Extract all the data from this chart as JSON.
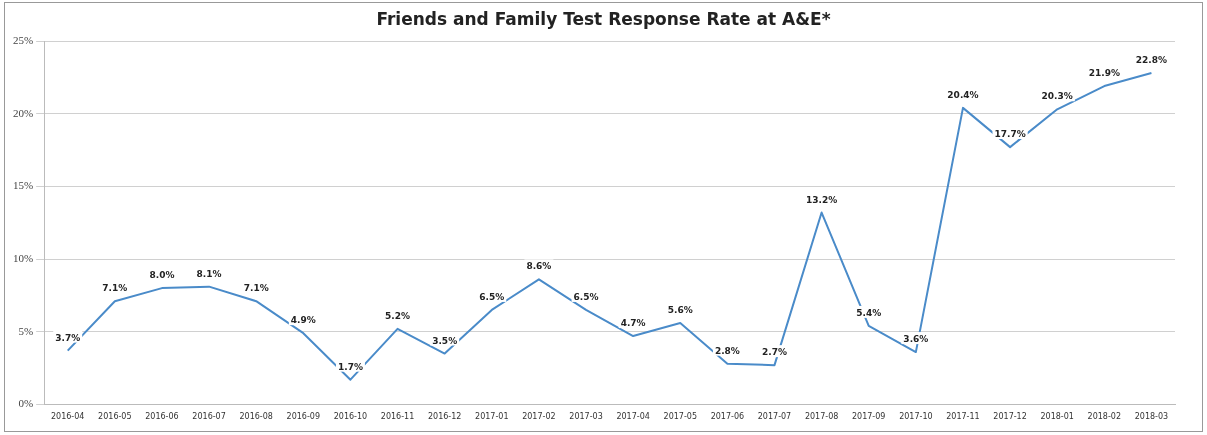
{
  "chart_data": {
    "type": "line",
    "title": "Friends and Family Test Response Rate at A&E*",
    "categories": [
      "2016-04",
      "2016-05",
      "2016-06",
      "2016-07",
      "2016-08",
      "2016-09",
      "2016-10",
      "2016-11",
      "2016-12",
      "2017-01",
      "2017-02",
      "2017-03",
      "2017-04",
      "2017-05",
      "2017-06",
      "2017-07",
      "2017-08",
      "2017-09",
      "2017-10",
      "2017-11",
      "2017-12",
      "2018-01",
      "2018-02",
      "2018-03"
    ],
    "series": [
      {
        "color": "#4a8bc9",
        "values": [
          3.7,
          7.1,
          8.0,
          8.1,
          7.1,
          4.9,
          1.7,
          5.2,
          3.5,
          6.5,
          8.6,
          6.5,
          4.7,
          5.6,
          2.8,
          2.7,
          13.2,
          5.4,
          3.6,
          20.4,
          17.7,
          20.3,
          21.9,
          22.8
        ],
        "value_labels": [
          "3.7%",
          "7.1%",
          "8.0%",
          "8.1%",
          "7.1%",
          "4.9%",
          "1.7%",
          "5.2%",
          "3.5%",
          "6.5%",
          "8.6%",
          "6.5%",
          "4.7%",
          "5.6%",
          "2.8%",
          "2.7%",
          "13.2%",
          "5.4%",
          "3.6%",
          "20.4%",
          "17.7%",
          "20.3%",
          "21.9%",
          "22.8%"
        ]
      }
    ],
    "ylim": [
      0,
      25
    ],
    "yticks": [
      {
        "value": 0,
        "label": "0%"
      },
      {
        "value": 5,
        "label": "5%"
      },
      {
        "value": 10,
        "label": "10%"
      },
      {
        "value": 15,
        "label": "15%"
      },
      {
        "value": 20,
        "label": "20%"
      },
      {
        "value": 25,
        "label": "25%"
      }
    ],
    "grid": "y",
    "legend": false,
    "marker": "none",
    "line_style": "solid"
  }
}
